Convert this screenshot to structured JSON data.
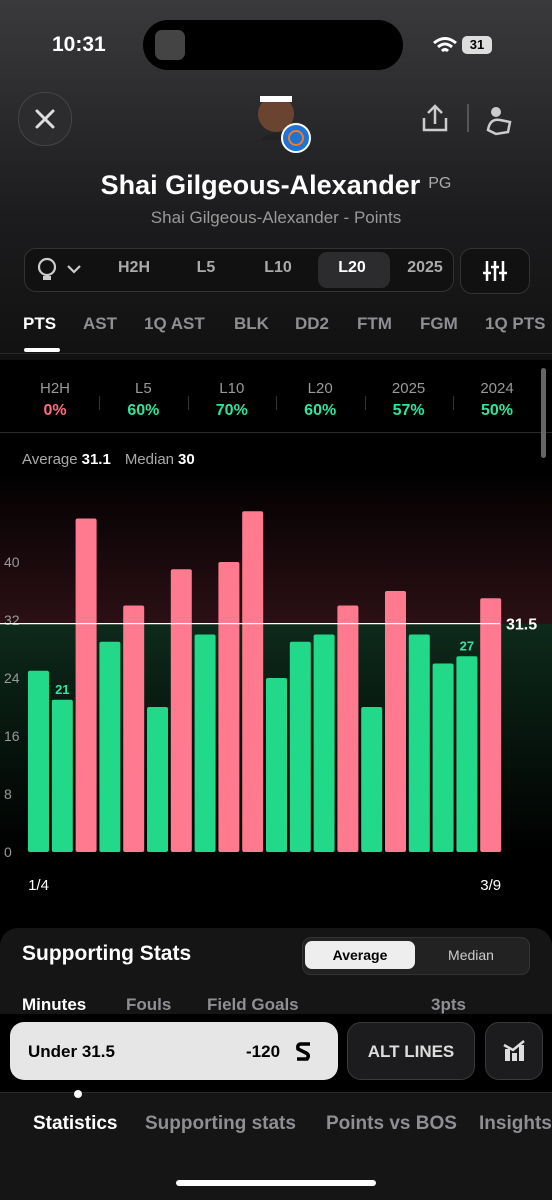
{
  "status_bar": {
    "time": "10:31",
    "battery": "31"
  },
  "header": {
    "name": "Shai Gilgeous-Alexander",
    "position": "PG",
    "subtitle": "Shai Gilgeous-Alexander - Points"
  },
  "filters": {
    "items": [
      "H2H",
      "L5",
      "L10",
      "L20",
      "2025"
    ],
    "active": "L20"
  },
  "stat_tabs": {
    "items": [
      "PTS",
      "AST",
      "1Q AST",
      "BLK",
      "DD2",
      "FTM",
      "FGM",
      "1Q PTS"
    ],
    "active": "PTS"
  },
  "hit_rates": [
    {
      "label": "H2H",
      "value": "0%",
      "color": "#ff6b81"
    },
    {
      "label": "L5",
      "value": "60%",
      "color": "#2ee59d"
    },
    {
      "label": "L10",
      "value": "70%",
      "color": "#2ee59d"
    },
    {
      "label": "L20",
      "value": "60%",
      "color": "#2ee59d"
    },
    {
      "label": "2025",
      "value": "57%",
      "color": "#2ee59d"
    },
    {
      "label": "2024",
      "value": "50%",
      "color": "#2ee59d"
    }
  ],
  "summary": {
    "average_label": "Average",
    "average": "31.1",
    "median_label": "Median",
    "median": "30"
  },
  "chart": {
    "type": "bar",
    "categories": [
      "1/4",
      null,
      null,
      null,
      null,
      null,
      null,
      null,
      null,
      null,
      null,
      null,
      null,
      null,
      null,
      null,
      null,
      null,
      null,
      "3/9"
    ],
    "values": [
      25,
      21,
      46,
      29,
      34,
      20,
      39,
      30,
      40,
      47,
      24,
      29,
      30,
      34,
      20,
      36,
      30,
      26,
      27,
      35
    ],
    "labeled": [
      1,
      18
    ],
    "line": 31.5,
    "line_label": "31.5",
    "over_color": "#ff7a8e",
    "under_color": "#22d98a",
    "ylim": [
      0,
      52
    ],
    "yticks": [
      0,
      8,
      16,
      24,
      32,
      40
    ],
    "grid": false
  },
  "supporting": {
    "title": "Supporting Stats",
    "toggle": [
      "Average",
      "Median"
    ],
    "tabs": [
      "Minutes",
      "Fouls",
      "Field Goals",
      "3pts"
    ]
  },
  "bet": {
    "side": "Under 31.5",
    "odds": "-120",
    "alt": "ALT LINES"
  },
  "bottom_tabs": [
    "Statistics",
    "Supporting stats",
    "Points vs BOS",
    "Insights"
  ]
}
